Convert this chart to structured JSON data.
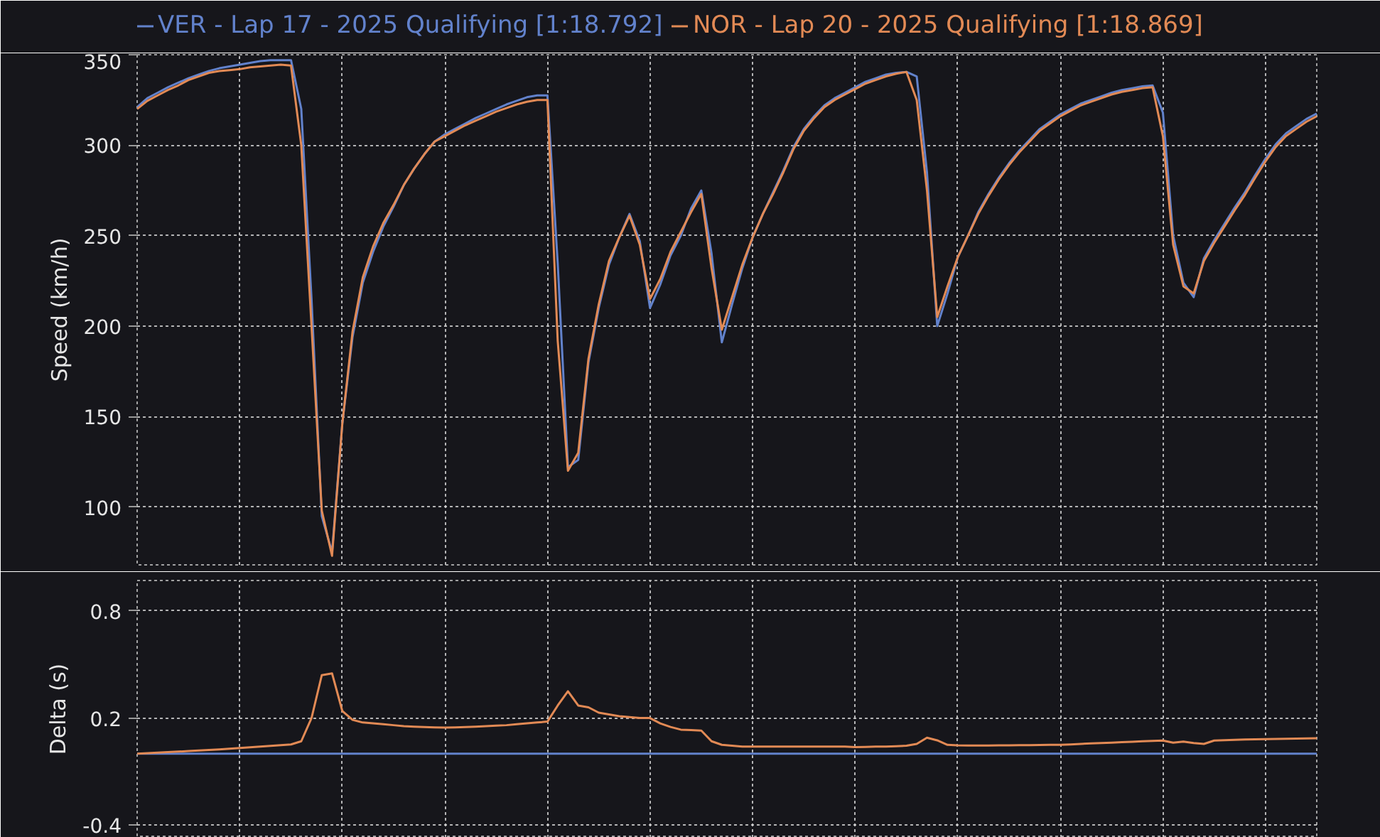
{
  "chart_data": [
    {
      "type": "line",
      "ylabel": "Speed (km/h)",
      "categories": [
        null,
        null,
        null,
        null,
        null,
        null,
        null,
        null,
        null,
        null,
        null,
        null,
        null,
        null,
        null,
        null,
        null,
        null,
        null,
        null,
        null,
        null,
        null,
        null,
        null,
        null,
        null,
        null,
        null,
        null,
        null,
        null,
        null,
        null,
        null,
        null,
        null,
        null,
        null,
        null,
        null,
        null,
        null,
        null,
        null,
        null,
        null,
        null,
        null,
        null,
        null,
        null,
        null,
        null,
        null,
        null,
        null,
        null,
        null,
        null,
        null,
        null,
        null,
        null,
        null,
        null,
        null,
        null,
        null,
        null,
        null,
        null,
        null,
        null,
        null,
        null,
        null,
        null,
        null,
        null,
        null,
        null,
        null,
        null,
        null,
        null,
        null,
        null,
        null,
        null,
        null,
        null,
        null,
        null,
        null,
        null,
        null,
        null,
        null,
        null,
        null,
        null,
        null,
        null,
        null,
        null,
        null,
        null,
        null,
        null,
        null,
        null,
        null,
        null,
        null,
        null
      ],
      "series": [
        {
          "name": "VER - Lap 17 - 2025 Qualifying [1:18.792]",
          "color": "#6282cc",
          "values": [
            321,
            326,
            329,
            332,
            334.5,
            337,
            339,
            341,
            342.5,
            343.5,
            344.5,
            345.5,
            346.5,
            347,
            347,
            347,
            320,
            215,
            95,
            75,
            146,
            194,
            224,
            241,
            255,
            266,
            278,
            287,
            295,
            302,
            306,
            309,
            312,
            315,
            317.5,
            320,
            322.5,
            324.5,
            326.5,
            327.5,
            327.5,
            235,
            122,
            126,
            180,
            210,
            234,
            249,
            262,
            247,
            210,
            223,
            239,
            250,
            265,
            275,
            240,
            191,
            212,
            232,
            249,
            262,
            274,
            286,
            299,
            309,
            316,
            322,
            326,
            329,
            332,
            335,
            337,
            339,
            340,
            340.5,
            338,
            285,
            200,
            218,
            238,
            250,
            263,
            273,
            282,
            290,
            297,
            303,
            309,
            313,
            317,
            320,
            323,
            325,
            327,
            329,
            330.5,
            331.5,
            332.5,
            333,
            318,
            250,
            224,
            216,
            237.5,
            247.5,
            256.5,
            265.5,
            274,
            283.5,
            292.5,
            300.5,
            306.5,
            310.5,
            314.5,
            317.5
          ]
        },
        {
          "name": "NOR - Lap 20 - 2025 Qualifying [1:18.869]",
          "color": "#e28a55",
          "values": [
            320,
            324.5,
            327.5,
            330.5,
            333,
            336,
            338,
            340,
            341,
            341.5,
            342,
            343,
            343.5,
            344,
            344.5,
            344,
            300,
            200,
            98,
            73,
            146,
            197,
            227,
            244,
            257,
            267,
            278,
            287,
            295,
            302,
            305,
            308,
            311,
            313.5,
            316,
            318.5,
            320.5,
            322.5,
            324,
            325,
            325,
            192,
            120,
            130,
            182,
            212,
            236,
            249,
            261,
            245,
            215,
            226,
            241,
            252,
            263,
            273,
            232,
            198,
            216,
            234,
            249,
            262,
            273,
            285,
            298,
            308,
            315,
            321,
            325,
            328,
            331,
            334,
            336,
            338,
            339.5,
            340.5,
            325,
            275,
            205,
            222,
            238,
            250,
            262,
            272,
            281,
            289,
            296,
            302,
            308,
            312,
            316,
            319,
            322,
            324,
            326,
            328,
            329.5,
            330.5,
            331.5,
            332,
            305,
            245,
            222,
            218,
            236,
            246,
            255,
            264,
            272.5,
            282,
            291,
            299,
            305,
            309,
            313,
            316
          ]
        }
      ],
      "ylim": [
        68,
        350
      ],
      "yticks": [
        100,
        150,
        200,
        250,
        300,
        350
      ],
      "grid": true,
      "legend": "top",
      "tick_labels": "y"
    },
    {
      "type": "line",
      "ylabel": "Delta (s)",
      "categories": [
        null,
        null,
        null,
        null,
        null,
        null,
        null,
        null,
        null,
        null,
        null,
        null,
        null,
        null,
        null,
        null,
        null,
        null,
        null,
        null,
        null,
        null,
        null,
        null,
        null,
        null,
        null,
        null,
        null,
        null,
        null,
        null,
        null,
        null,
        null,
        null,
        null,
        null,
        null,
        null,
        null,
        null,
        null,
        null,
        null,
        null,
        null,
        null,
        null,
        null,
        null,
        null,
        null,
        null,
        null,
        null,
        null,
        null,
        null,
        null,
        null,
        null,
        null,
        null,
        null,
        null,
        null,
        null,
        null,
        null,
        null,
        null,
        null,
        null,
        null,
        null,
        null,
        null,
        null,
        null,
        null,
        null,
        null,
        null,
        null,
        null,
        null,
        null,
        null,
        null,
        null,
        null,
        null,
        null,
        null,
        null,
        null,
        null,
        null,
        null,
        null,
        null,
        null,
        null,
        null,
        null,
        null,
        null,
        null,
        null,
        null,
        null,
        null,
        null,
        null,
        null
      ],
      "series": [
        {
          "color": "#6282cc",
          "values": [
            0,
            0,
            0,
            0,
            0,
            0,
            0,
            0,
            0,
            0,
            0,
            0,
            0,
            0,
            0,
            0,
            0,
            0,
            0,
            0,
            0,
            0,
            0,
            0,
            0,
            0,
            0,
            0,
            0,
            0,
            0,
            0,
            0,
            0,
            0,
            0,
            0,
            0,
            0,
            0,
            0,
            0,
            0,
            0,
            0,
            0,
            0,
            0,
            0,
            0,
            0,
            0,
            0,
            0,
            0,
            0,
            0,
            0,
            0,
            0,
            0,
            0,
            0,
            0,
            0,
            0,
            0,
            0,
            0,
            0,
            0,
            0,
            0,
            0,
            0,
            0,
            0,
            0,
            0,
            0,
            0,
            0,
            0,
            0,
            0,
            0,
            0,
            0,
            0,
            0,
            0,
            0,
            0,
            0,
            0,
            0,
            0,
            0,
            0,
            0,
            0,
            0,
            0,
            0,
            0,
            0,
            0,
            0,
            0,
            0,
            0,
            0,
            0,
            0,
            0,
            0
          ]
        },
        {
          "color": "#e28a55",
          "values": [
            0,
            0.003,
            0.006,
            0.009,
            0.012,
            0.015,
            0.018,
            0.021,
            0.024,
            0.028,
            0.032,
            0.036,
            0.04,
            0.044,
            0.048,
            0.052,
            0.07,
            0.2,
            0.44,
            0.45,
            0.24,
            0.19,
            0.175,
            0.17,
            0.165,
            0.16,
            0.155,
            0.152,
            0.15,
            0.148,
            0.147,
            0.148,
            0.15,
            0.152,
            0.155,
            0.158,
            0.16,
            0.165,
            0.17,
            0.175,
            0.18,
            0.27,
            0.35,
            0.27,
            0.26,
            0.23,
            0.22,
            0.21,
            0.205,
            0.2,
            0.2,
            0.17,
            0.15,
            0.135,
            0.133,
            0.13,
            0.07,
            0.05,
            0.045,
            0.04,
            0.04,
            0.04,
            0.04,
            0.04,
            0.04,
            0.04,
            0.04,
            0.04,
            0.04,
            0.04,
            0.037,
            0.038,
            0.04,
            0.04,
            0.042,
            0.045,
            0.055,
            0.09,
            0.075,
            0.05,
            0.047,
            0.046,
            0.046,
            0.046,
            0.047,
            0.047,
            0.048,
            0.048,
            0.049,
            0.05,
            0.05,
            0.052,
            0.055,
            0.058,
            0.06,
            0.062,
            0.065,
            0.067,
            0.07,
            0.072,
            0.074,
            0.062,
            0.068,
            0.06,
            0.055,
            0.074,
            0.076,
            0.078,
            0.08,
            0.081,
            0.082,
            0.083,
            0.084,
            0.085,
            0.086,
            0.087
          ]
        }
      ],
      "ylim": [
        -0.47,
        0.97
      ],
      "yticks": [
        -0.4,
        0.2,
        0.8
      ],
      "grid": true,
      "tick_labels": "y"
    }
  ]
}
